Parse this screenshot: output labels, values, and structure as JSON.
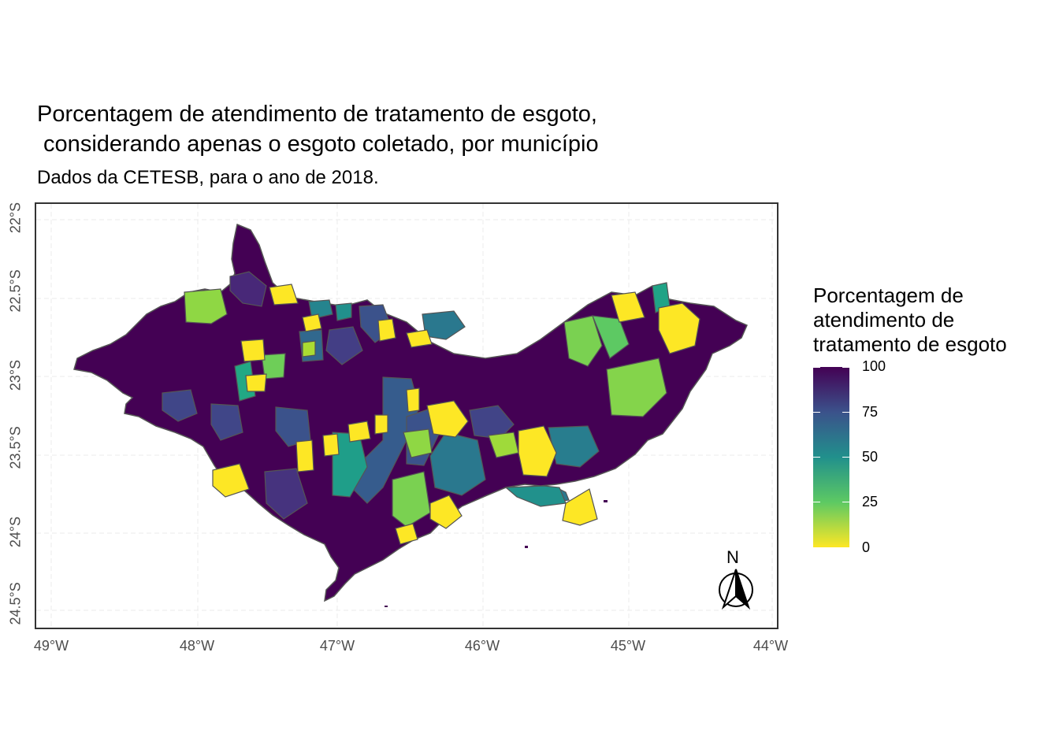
{
  "title": "Porcentagem de atendimento de tratamento de esgoto,\n considerando apenas o esgoto coletado, por município",
  "subtitle": "Dados da CETESB, para o ano de 2018.",
  "north_arrow_label": "N",
  "axes": {
    "x_ticks": [
      "49°W",
      "48°W",
      "47°W",
      "46°W",
      "45°W",
      "44°W"
    ],
    "y_ticks": [
      "22°S",
      "22.5°S",
      "23°S",
      "23.5°S",
      "24°S",
      "24.5°S"
    ]
  },
  "legend": {
    "title": "Porcentagem de\natendimento de\ntratamento de esgoto",
    "ticks": [
      "100",
      "75",
      "50",
      "25",
      "0"
    ],
    "scale": "viridis",
    "colors": [
      "#440154",
      "#3b528b",
      "#21908c",
      "#5dc963",
      "#fde725"
    ]
  },
  "chart_data": {
    "type": "choropleth",
    "title": "Porcentagem de atendimento de tratamento de esgoto, considerando apenas o esgoto coletado, por município",
    "subtitle": "Dados da CETESB, para o ano de 2018.",
    "xlim": [
      -49.0,
      -44.0
    ],
    "ylim": [
      -24.5,
      -22.0
    ],
    "value_range": [
      0,
      100
    ],
    "grid": true,
    "legend_position": "right"
  }
}
